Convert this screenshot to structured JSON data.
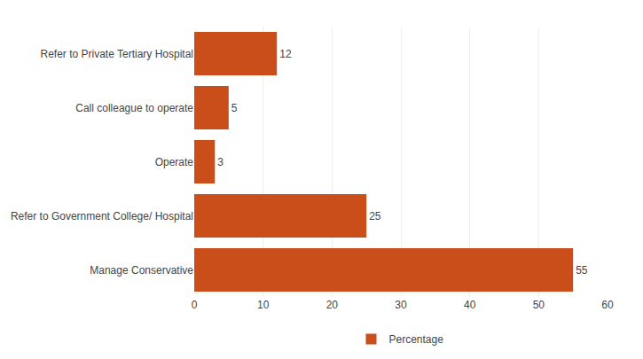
{
  "chart_data": {
    "type": "bar",
    "orientation": "horizontal",
    "categories": [
      "Manage Conservative",
      "Refer to Government College/ Hospital",
      "Operate",
      "Call colleague to operate",
      "Refer to Private Tertiary Hospital"
    ],
    "series": [
      {
        "name": "Percentage",
        "color": "#c94e1a",
        "values": [
          55,
          25,
          3,
          5,
          12
        ]
      }
    ],
    "xlim": [
      0,
      60
    ],
    "xticks": [
      0,
      10,
      20,
      30,
      40,
      50,
      60
    ],
    "grid": true,
    "data_labels": true,
    "legend": "bottom"
  }
}
